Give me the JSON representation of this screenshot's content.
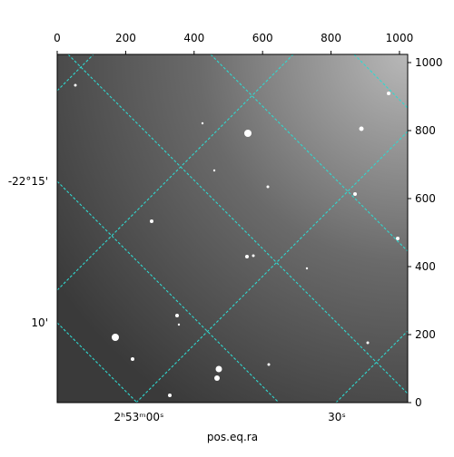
{
  "chart_data": {
    "type": "image",
    "xlabel": "pos.eq.ra",
    "xlim": [
      0,
      1024
    ],
    "xticks": [
      0,
      200,
      400,
      600,
      800,
      1000
    ],
    "ylim": [
      0,
      1024
    ],
    "yticks": [
      0,
      200,
      400,
      600,
      800,
      1000
    ],
    "ra_tick_labels": [
      "2ʰ53ᵐ00ˢ",
      "30ˢ"
    ],
    "dec_tick_labels": [
      "-22°15'",
      "10'"
    ],
    "grid_color": "#30d8d0"
  }
}
